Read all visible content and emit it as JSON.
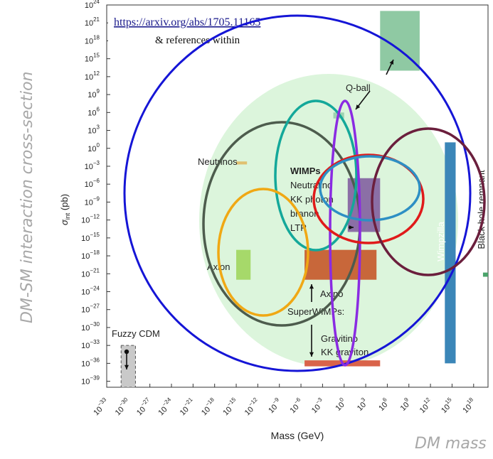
{
  "outer_labels": {
    "y": "DM-SM interaction cross-section",
    "x": "DM mass"
  },
  "chart_data": {
    "type": "region-plot",
    "link": "https://arxiv.org/abs/1705.11165",
    "link_note": "& references within",
    "xlabel": "Mass (GeV)",
    "ylabel_main": "σ",
    "ylabel_sub": "int",
    "ylabel_unit": "(pb)",
    "x_axis": {
      "scale": "log10",
      "range_exp": [
        -33,
        20
      ],
      "tick_exps": [
        -33,
        -30,
        -27,
        -24,
        -21,
        -18,
        -15,
        -12,
        -9,
        -6,
        -3,
        0,
        3,
        6,
        9,
        12,
        15,
        18
      ]
    },
    "y_axis": {
      "scale": "log10",
      "range_exp": [
        -40,
        24
      ],
      "tick_exps": [
        24,
        21,
        18,
        15,
        12,
        9,
        6,
        3,
        0,
        -3,
        -6,
        -9,
        -12,
        -15,
        -18,
        -21,
        -24,
        -27,
        -30,
        -33,
        -36,
        -39
      ]
    },
    "regions": [
      {
        "name": "Fuzzy CDM",
        "x": [
          -31,
          -29
        ],
        "y": [
          -40,
          -33
        ],
        "color": "#c9c9c9",
        "dashed": true
      },
      {
        "name": "Axion",
        "x": [
          -15,
          -13
        ],
        "y": [
          -22,
          -17
        ],
        "color": "#a6d96a"
      },
      {
        "name": "Neutrinos",
        "x": [
          -15,
          -13.5
        ],
        "y": [
          -2.7,
          -2.2
        ],
        "color": "#e0c070"
      },
      {
        "name": "Q-ball",
        "x": [
          -1.5,
          0
        ],
        "y": [
          5,
          6
        ],
        "color": "#9dd3b0"
      },
      {
        "name": "Q-ball top",
        "x": [
          5,
          10.5
        ],
        "y": [
          13,
          23
        ],
        "color": "#8fc9a3"
      },
      {
        "name": "WIMPs",
        "x": [
          0.5,
          5
        ],
        "y": [
          -14,
          -5
        ],
        "color": "#8b6fa6"
      },
      {
        "name": "Axino",
        "x": [
          -5.5,
          4.5
        ],
        "y": [
          -22,
          -17
        ],
        "color": "#c8673a"
      },
      {
        "name": "Gravitino",
        "x": [
          -5.5,
          5
        ],
        "y": [
          -36.5,
          -35.5
        ],
        "color": "#d9634a"
      },
      {
        "name": "Wimpzilla",
        "x": [
          14,
          15.5
        ],
        "y": [
          -36,
          1
        ],
        "color": "#3b86b8"
      },
      {
        "name": "Black hole remnant",
        "x": [
          19.3,
          20
        ],
        "y": [
          -21.5,
          -20.8
        ],
        "color": "#4aa36a"
      }
    ],
    "labels": [
      {
        "text": "Fuzzy CDM"
      },
      {
        "text": "Axion"
      },
      {
        "text": "Neutrinos"
      },
      {
        "text": "Q-ball"
      },
      {
        "text": "WIMPs"
      },
      {
        "text": "Neutralino"
      },
      {
        "text": "KK photon"
      },
      {
        "text": "branon"
      },
      {
        "text": "LTP"
      },
      {
        "text": "Axino"
      },
      {
        "text": "SuperWIMPs:"
      },
      {
        "text": "Gravitino"
      },
      {
        "text": "KK graviton"
      },
      {
        "text": "Wimpzilla"
      },
      {
        "text": "Black hole remnant"
      }
    ],
    "overlay_ellipses": [
      {
        "color": "#1515d6"
      },
      {
        "color": "#4d5c4d"
      },
      {
        "color": "#14a89a"
      },
      {
        "color": "#f0a814"
      },
      {
        "color": "#8a2be2"
      },
      {
        "color": "#e01a1a"
      },
      {
        "color": "#2d8fc4"
      },
      {
        "color": "#6b1f3d"
      }
    ]
  }
}
